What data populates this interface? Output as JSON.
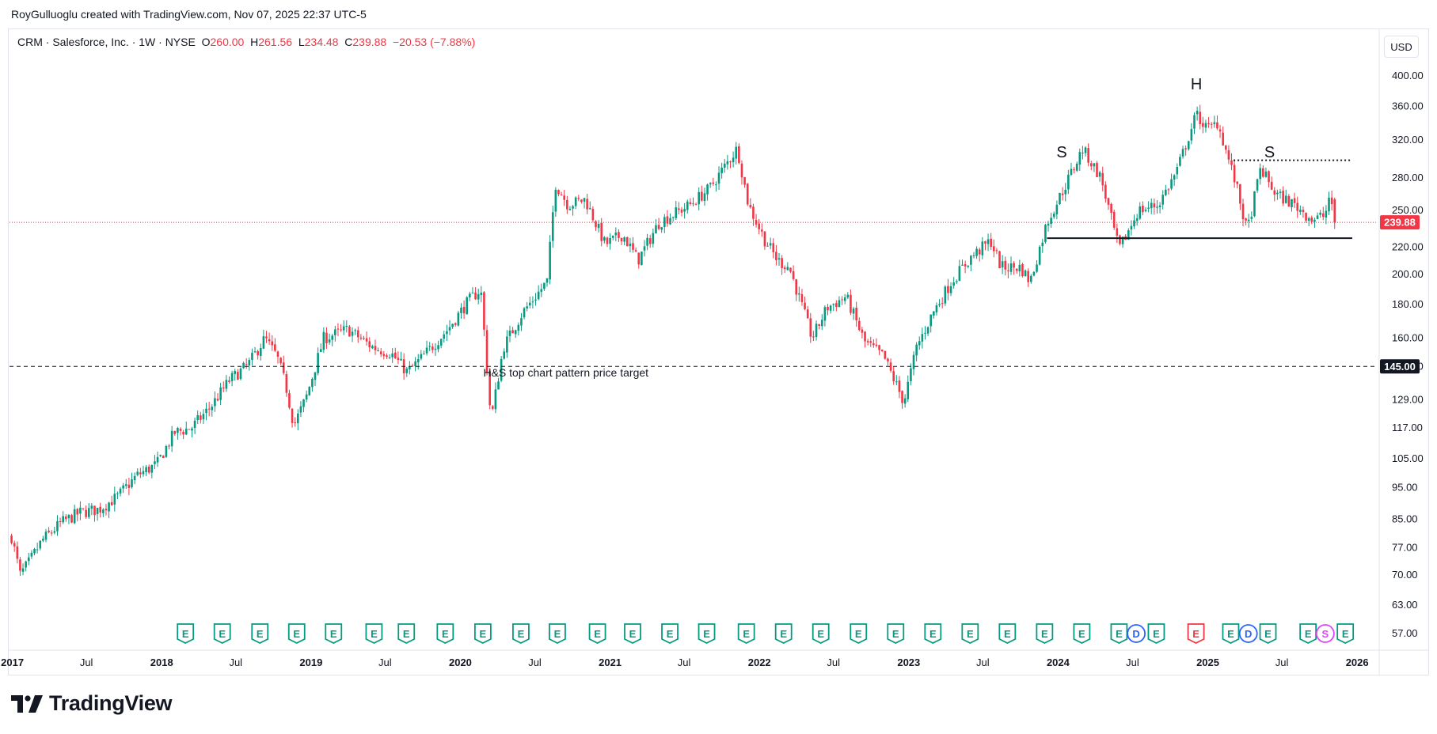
{
  "header": {
    "credit": "RoyGulluoglu created with TradingView.com, Nov 07, 2025 22:37 UTC-5"
  },
  "legend": {
    "symbol": "CRM · Salesforce, Inc. · 1W · NYSE",
    "open_label": "O",
    "open": "260.00",
    "high_label": "H",
    "high": "261.56",
    "low_label": "L",
    "low": "234.48",
    "close_label": "C",
    "close": "239.88",
    "change": "−20.53 (−7.88%)"
  },
  "currency": "USD",
  "brand": "TradingView",
  "colors": {
    "up": "#089981",
    "down": "#f23645",
    "text": "#131722",
    "grid": "#e0e3eb",
    "earnings": "#089981",
    "earnings_miss": "#f23645",
    "dividend": "#2962ff",
    "split": "#e040fb"
  },
  "chart_data": {
    "type": "candlestick",
    "scale": "log",
    "ylim": [
      55,
      430
    ],
    "y_ticks": [
      400,
      360,
      320,
      280,
      250,
      220,
      200,
      180,
      160,
      145,
      129,
      117,
      105,
      95,
      85,
      77,
      70,
      63,
      57
    ],
    "y_tick_labels": [
      "400.00",
      "360.00",
      "320.00",
      "280.00",
      "250.00",
      "220.00",
      "200.00",
      "180.00",
      "160.00",
      "145.00",
      "129.00",
      "117.00",
      "105.00",
      "95.00",
      "85.00",
      "77.00",
      "70.00",
      "63.00",
      "57.00"
    ],
    "x_range": [
      "2016-12-25",
      "2026-02-20"
    ],
    "x_ticks": [
      {
        "date": "2017-01-01",
        "label": "2017",
        "bold": true
      },
      {
        "date": "2017-07-01",
        "label": "Jul",
        "bold": false
      },
      {
        "date": "2018-01-01",
        "label": "2018",
        "bold": true
      },
      {
        "date": "2018-07-01",
        "label": "Jul",
        "bold": false
      },
      {
        "date": "2019-01-01",
        "label": "2019",
        "bold": true
      },
      {
        "date": "2019-07-01",
        "label": "Jul",
        "bold": false
      },
      {
        "date": "2020-01-01",
        "label": "2020",
        "bold": true
      },
      {
        "date": "2020-07-01",
        "label": "Jul",
        "bold": false
      },
      {
        "date": "2021-01-01",
        "label": "2021",
        "bold": true
      },
      {
        "date": "2021-07-01",
        "label": "Jul",
        "bold": false
      },
      {
        "date": "2022-01-01",
        "label": "2022",
        "bold": true
      },
      {
        "date": "2022-07-01",
        "label": "Jul",
        "bold": false
      },
      {
        "date": "2023-01-01",
        "label": "2023",
        "bold": true
      },
      {
        "date": "2023-07-01",
        "label": "Jul",
        "bold": false
      },
      {
        "date": "2024-01-01",
        "label": "2024",
        "bold": true
      },
      {
        "date": "2024-07-01",
        "label": "Jul",
        "bold": false
      },
      {
        "date": "2025-01-01",
        "label": "2025",
        "bold": true
      },
      {
        "date": "2025-07-01",
        "label": "Jul",
        "bold": false
      },
      {
        "date": "2026-01-01",
        "label": "2026",
        "bold": true
      }
    ],
    "price_path": [
      [
        "2016-12-30",
        80
      ],
      [
        "2017-01-20",
        70
      ],
      [
        "2017-02-10",
        73
      ],
      [
        "2017-03-15",
        79
      ],
      [
        "2017-05-01",
        84
      ],
      [
        "2017-06-15",
        87
      ],
      [
        "2017-08-01",
        88
      ],
      [
        "2017-09-15",
        92
      ],
      [
        "2017-11-01",
        99
      ],
      [
        "2017-12-20",
        103
      ],
      [
        "2018-02-01",
        115
      ],
      [
        "2018-03-15",
        117
      ],
      [
        "2018-05-01",
        126
      ],
      [
        "2018-06-15",
        138
      ],
      [
        "2018-08-01",
        146
      ],
      [
        "2018-09-10",
        160
      ],
      [
        "2018-10-10",
        150
      ],
      [
        "2018-11-01",
        135
      ],
      [
        "2018-11-20",
        118
      ],
      [
        "2018-12-20",
        130
      ],
      [
        "2019-02-01",
        160
      ],
      [
        "2019-04-01",
        165
      ],
      [
        "2019-06-01",
        155
      ],
      [
        "2019-07-15",
        152
      ],
      [
        "2019-08-25",
        142
      ],
      [
        "2019-10-01",
        150
      ],
      [
        "2019-12-01",
        165
      ],
      [
        "2020-01-20",
        182
      ],
      [
        "2020-02-20",
        190
      ],
      [
        "2020-03-16",
        120
      ],
      [
        "2020-04-15",
        155
      ],
      [
        "2020-06-01",
        175
      ],
      [
        "2020-07-31",
        195
      ],
      [
        "2020-08-20",
        275
      ],
      [
        "2020-09-20",
        255
      ],
      [
        "2020-11-01",
        260
      ],
      [
        "2020-12-20",
        222
      ],
      [
        "2021-02-01",
        230
      ],
      [
        "2021-03-10",
        210
      ],
      [
        "2021-05-01",
        240
      ],
      [
        "2021-07-15",
        255
      ],
      [
        "2021-09-01",
        270
      ],
      [
        "2021-11-08",
        311
      ],
      [
        "2021-12-05",
        255
      ],
      [
        "2022-01-15",
        225
      ],
      [
        "2022-02-15",
        210
      ],
      [
        "2022-03-15",
        205
      ],
      [
        "2022-05-10",
        160
      ],
      [
        "2022-06-15",
        178
      ],
      [
        "2022-08-01",
        185
      ],
      [
        "2022-09-15",
        158
      ],
      [
        "2022-11-01",
        150
      ],
      [
        "2022-12-20",
        128
      ],
      [
        "2023-01-20",
        155
      ],
      [
        "2023-03-01",
        175
      ],
      [
        "2023-04-15",
        195
      ],
      [
        "2023-06-01",
        212
      ],
      [
        "2023-07-20",
        225
      ],
      [
        "2023-08-15",
        205
      ],
      [
        "2023-10-01",
        205
      ],
      [
        "2023-10-25",
        195
      ],
      [
        "2023-12-05",
        240
      ],
      [
        "2024-01-15",
        270
      ],
      [
        "2024-03-01",
        310
      ],
      [
        "2024-04-15",
        280
      ],
      [
        "2024-05-29",
        218
      ],
      [
        "2024-07-15",
        250
      ],
      [
        "2024-09-01",
        255
      ],
      [
        "2024-10-15",
        285
      ],
      [
        "2024-12-04",
        350
      ],
      [
        "2024-12-31",
        332
      ],
      [
        "2025-01-25",
        340
      ],
      [
        "2025-03-10",
        275
      ],
      [
        "2025-04-07",
        232
      ],
      [
        "2025-05-10",
        290
      ],
      [
        "2025-06-15",
        265
      ],
      [
        "2025-08-01",
        255
      ],
      [
        "2025-09-15",
        242
      ],
      [
        "2025-10-15",
        246
      ],
      [
        "2025-10-24",
        262
      ],
      [
        "2025-11-07",
        240
      ]
    ],
    "last_candle": {
      "date": "2025-11-07",
      "open": 260.0,
      "high": 261.56,
      "low": 234.48,
      "close": 239.88
    },
    "current_price": 239.88,
    "current_price_label": "239.88",
    "target_price": 145.0,
    "target_price_label": "145.00",
    "annotations": [
      {
        "text": "S",
        "date": "2024-01-10",
        "price": 301
      },
      {
        "text": "H",
        "date": "2024-12-04",
        "price": 382
      },
      {
        "text": "S",
        "date": "2025-06-01",
        "price": 301
      },
      {
        "text": "H&S top chart pattern price target",
        "date": "2020-09-15",
        "price": 140
      }
    ],
    "lines": [
      {
        "name": "neckline",
        "style": "solid",
        "price": 227,
        "from": "2023-12-05",
        "to": "2025-12-20"
      },
      {
        "name": "right-shoulder-level",
        "style": "dotted",
        "price": 298,
        "from": "2025-03-05",
        "to": "2025-12-20"
      },
      {
        "name": "price-target",
        "style": "dashed",
        "price": 145,
        "from": "2016-12-25",
        "to": "2026-02-20"
      },
      {
        "name": "last-price",
        "style": "dotted",
        "price": 239.88,
        "from": "2016-12-25",
        "to": "2026-02-20"
      }
    ],
    "events": [
      {
        "type": "E",
        "date": "2018-02-28"
      },
      {
        "type": "E",
        "date": "2018-05-29"
      },
      {
        "type": "E",
        "date": "2018-08-29"
      },
      {
        "type": "E",
        "date": "2018-11-27"
      },
      {
        "type": "E",
        "date": "2019-02-25"
      },
      {
        "type": "E",
        "date": "2019-06-04"
      },
      {
        "type": "E",
        "date": "2019-08-22"
      },
      {
        "type": "E",
        "date": "2019-11-25"
      },
      {
        "type": "E",
        "date": "2020-02-25"
      },
      {
        "type": "E",
        "date": "2020-05-28"
      },
      {
        "type": "E",
        "date": "2020-08-25"
      },
      {
        "type": "E",
        "date": "2020-12-01"
      },
      {
        "type": "E",
        "date": "2021-02-25"
      },
      {
        "type": "E",
        "date": "2021-05-27"
      },
      {
        "type": "E",
        "date": "2021-08-25"
      },
      {
        "type": "E",
        "date": "2021-11-30"
      },
      {
        "type": "E",
        "date": "2022-03-01"
      },
      {
        "type": "E",
        "date": "2022-05-31"
      },
      {
        "type": "E",
        "date": "2022-08-31"
      },
      {
        "type": "E",
        "date": "2022-11-30"
      },
      {
        "type": "E",
        "date": "2023-03-01"
      },
      {
        "type": "E",
        "date": "2023-05-31"
      },
      {
        "type": "E",
        "date": "2023-08-30"
      },
      {
        "type": "E",
        "date": "2023-11-29"
      },
      {
        "type": "E",
        "date": "2024-02-28"
      },
      {
        "type": "E",
        "date": "2024-05-29"
      },
      {
        "type": "D",
        "date": "2024-07-10"
      },
      {
        "type": "E",
        "date": "2024-08-28"
      },
      {
        "type": "E",
        "date": "2024-12-03"
      },
      {
        "type": "E",
        "date": "2025-02-26"
      },
      {
        "type": "D",
        "date": "2025-04-10"
      },
      {
        "type": "E",
        "date": "2025-05-28"
      },
      {
        "type": "E",
        "date": "2025-09-03"
      },
      {
        "type": "S",
        "date": "2025-10-15"
      },
      {
        "type": "E",
        "date": "2025-12-03"
      }
    ]
  }
}
